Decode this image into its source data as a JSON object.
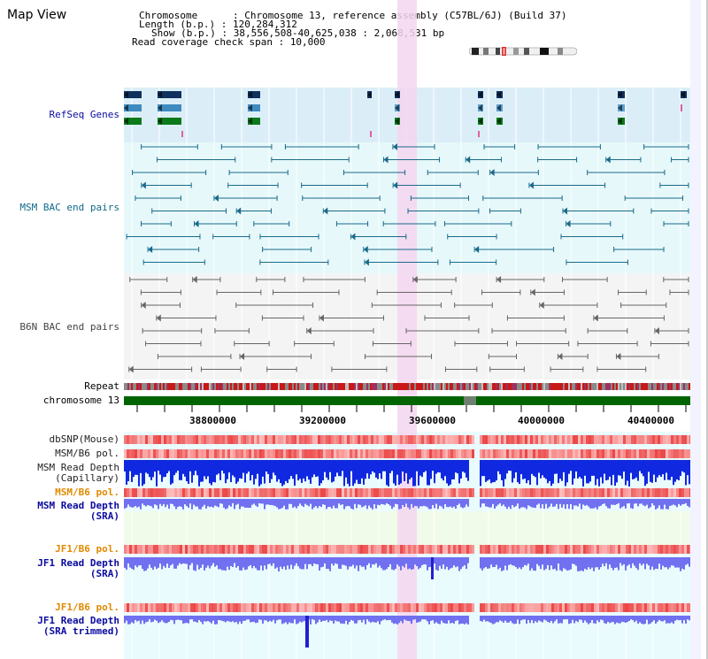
{
  "title": "Map View",
  "header": {
    "chromosome_key": "Chromosome      : ",
    "chromosome_val": "Chromosome 13, reference assembly (C57BL/6J) (Build 37)",
    "length_key": "Length (b.p.) : ",
    "length_val": "120,284,312",
    "show_key": "Show (b.p.) : ",
    "show_val": "38,556,508-40,625,038 : 2,068,531 bp",
    "coverage_key": "Read coverage check span : ",
    "coverage_val": "10,000"
  },
  "tracks": {
    "refseq": {
      "label": "RefSeq Genes",
      "color": "#1a1aa8"
    },
    "msm_bac": {
      "label": "MSM BAC end pairs",
      "color": "#1a6a9a"
    },
    "b6n_bac": {
      "label": "B6N BAC end pairs",
      "color": "#555555"
    },
    "repeat": {
      "label": "Repeat"
    },
    "chromosome": {
      "label": "chromosome 13"
    },
    "dbsnp": {
      "label": "dbSNP(Mouse)"
    },
    "msm_b6_pol": {
      "label": "MSM/B6 pol."
    },
    "msm_read_depth_cap": {
      "label": "MSM Read Depth\n(Capillary)"
    },
    "msm_b6_pol2": {
      "label": "MSM/B6 pol."
    },
    "msm_read_depth_sra": {
      "label": "MSM Read Depth\n(SRA)"
    },
    "jf1_b6_pol": {
      "label": "JF1/B6 pol."
    },
    "jf1_read_depth_sra": {
      "label": "JF1 Read Depth\n(SRA)"
    },
    "jf1_b6_pol2": {
      "label": "JF1/B6 pol."
    },
    "jf1_read_depth_trim": {
      "label": "JF1 Read Depth\n(SRA trimmed)"
    }
  },
  "axis": {
    "ticks": [
      "38800000",
      "39200000",
      "39600000",
      "40000000",
      "40400000"
    ]
  },
  "colors": {
    "refseq_bg": "#dbeef8",
    "msm_bg": "#e6f8fa",
    "b6n_bg": "#f4f4f4",
    "highlight": "#f5d6f0",
    "chrom_green": "#006400",
    "label_black": "#000000",
    "label_blue": "#0a0aa0",
    "label_orange": "#e08a00",
    "label_teal": "#106a8a",
    "label_gray": "#444444"
  }
}
